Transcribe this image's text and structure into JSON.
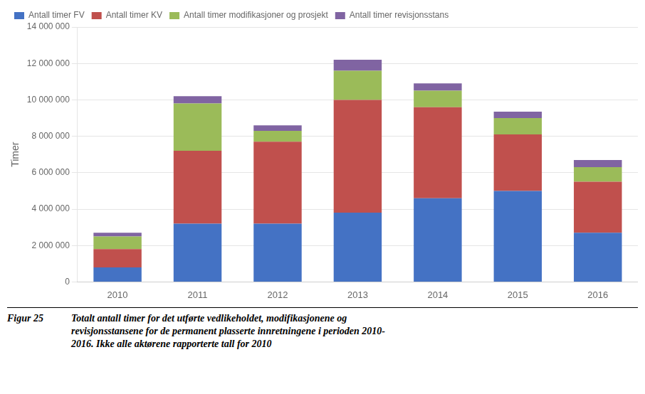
{
  "chart_data": {
    "type": "bar",
    "stacked": true,
    "categories": [
      "2010",
      "2011",
      "2012",
      "2013",
      "2014",
      "2015",
      "2016"
    ],
    "series": [
      {
        "name": "Antall timer FV",
        "color": "#4472C4",
        "values": [
          800000,
          3200000,
          3200000,
          3800000,
          4600000,
          5000000,
          2700000
        ]
      },
      {
        "name": "Antall timer KV",
        "color": "#C0504D",
        "values": [
          1000000,
          4000000,
          4500000,
          6200000,
          5000000,
          3100000,
          2800000
        ]
      },
      {
        "name": "Antall timer modifikasjoner og prosjekt",
        "color": "#9BBB59",
        "values": [
          700000,
          2600000,
          600000,
          1600000,
          900000,
          900000,
          800000
        ]
      },
      {
        "name": "Antall timer revisjonsstans",
        "color": "#8064A2",
        "values": [
          200000,
          400000,
          300000,
          600000,
          400000,
          350000,
          400000
        ]
      }
    ],
    "ylabel": "Timer",
    "ylim": [
      0,
      14000000
    ],
    "yticks": [
      0,
      {
        "value": 2000000,
        "label": "2 000 000"
      },
      {
        "value": 4000000,
        "label": "4 000 000"
      },
      {
        "value": 6000000,
        "label": "6 000 000"
      },
      {
        "value": 8000000,
        "label": "8 000 000"
      },
      {
        "value": 10000000,
        "label": "10 000 000"
      },
      {
        "value": 12000000,
        "label": "12 000 000"
      },
      {
        "value": 14000000,
        "label": "14 000 000"
      }
    ],
    "grid": true,
    "legend": "upper left",
    "annotations": [
      "Figur 25",
      "Totalt antall timer for det utførte vedlikeholdet, modifikasjonene og\nrevisjonsstansene for de permanent plasserte innretningene i perioden 2010-\n2016. Ikke alle aktørene rapporterte tall for 2010"
    ]
  }
}
